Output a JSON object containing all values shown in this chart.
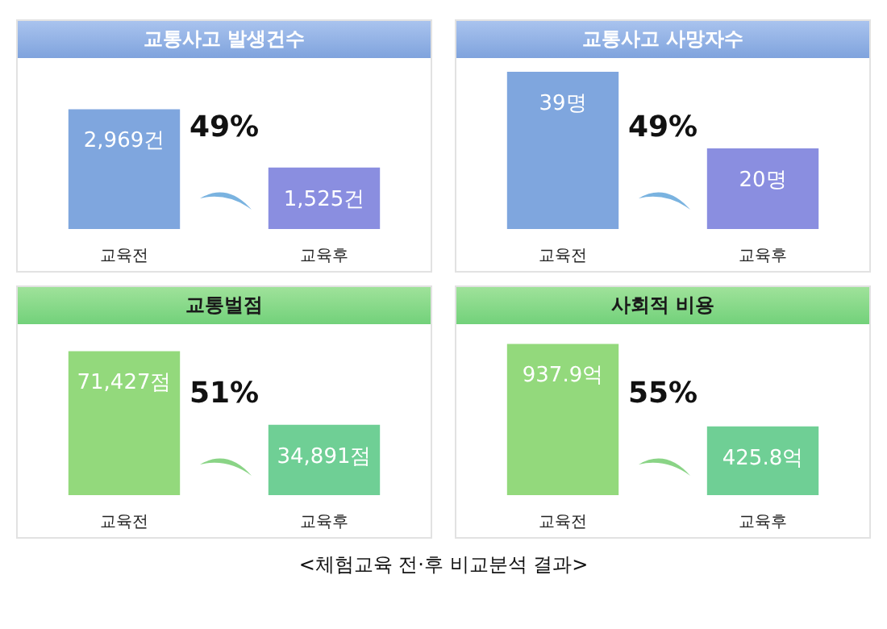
{
  "chart_data": [
    {
      "type": "bar",
      "title": "교통사고 발생건수",
      "categories": [
        "교육전",
        "교육후"
      ],
      "values": [
        2969,
        1525
      ],
      "colors": [
        "#7fa6de",
        "#8a8ee0"
      ],
      "data_labels": true,
      "value_labels": [
        "2,969건",
        "1,525건"
      ],
      "annotations": [
        "49%"
      ]
    },
    {
      "type": "bar",
      "title": "교통사고 사망자수",
      "categories": [
        "교육전",
        "교육후"
      ],
      "values": [
        39,
        20
      ],
      "colors": [
        "#7fa6de",
        "#8a8ee0"
      ],
      "data_labels": true,
      "value_labels": [
        "39명",
        "20명"
      ],
      "annotations": [
        "49%"
      ]
    },
    {
      "type": "bar",
      "title": "교통벌점",
      "categories": [
        "교육전",
        "교육후"
      ],
      "values": [
        71427,
        34891
      ],
      "colors": [
        "#93d97c",
        "#6fcf95"
      ],
      "data_labels": true,
      "value_labels": [
        "71,427점",
        "34,891점"
      ],
      "annotations": [
        "51%"
      ]
    },
    {
      "type": "bar",
      "title": "사회적 비용",
      "categories": [
        "교육전",
        "교육후"
      ],
      "values": [
        937.9,
        425.8
      ],
      "colors": [
        "#93d97c",
        "#6fcf95"
      ],
      "data_labels": true,
      "value_labels": [
        "937.9억",
        "425.8억"
      ],
      "annotations": [
        "55%"
      ]
    },
    {
      "type": "other",
      "annotations": [
        "<체험교육 전·후 비교분석 결과>"
      ]
    }
  ]
}
